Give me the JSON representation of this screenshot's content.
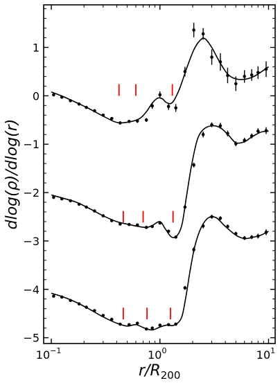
{
  "chart_data": {
    "type": "line",
    "xlabel": "r/R",
    "xlabel_sub": "200",
    "ylabel": "dlog(ρ)/dlog(r)",
    "xscale": "log",
    "xlim": [
      0.085,
      11.5
    ],
    "ylim": [
      -5.12,
      1.88
    ],
    "xticks": [
      {
        "value": 0.1,
        "base": "10",
        "exp": "−1"
      },
      {
        "value": 1,
        "label": "10",
        "exp": "0"
      },
      {
        "value": 10,
        "label": "10",
        "exp": "1"
      }
    ],
    "yticks": [
      1,
      0,
      -1,
      -2,
      -3,
      -4,
      -5
    ],
    "ytick_labels": [
      "1",
      "0",
      "−1",
      "−2",
      "−3",
      "−4",
      "−5"
    ],
    "series": [
      {
        "curve_x": [
          0.1,
          0.13,
          0.17,
          0.22,
          0.3,
          0.4,
          0.52,
          0.65,
          0.75,
          0.85,
          0.95,
          1.05,
          1.15,
          1.3,
          1.5,
          1.75,
          2.05,
          2.35,
          2.6,
          3.0,
          3.5,
          4.2,
          5.0,
          6.0,
          7.0,
          8.0,
          10.0
        ],
        "curve_y": [
          0.08,
          -0.02,
          -0.14,
          -0.26,
          -0.42,
          -0.55,
          -0.54,
          -0.47,
          -0.33,
          -0.15,
          -0.05,
          -0.06,
          -0.14,
          -0.14,
          0.12,
          0.55,
          0.95,
          1.15,
          1.18,
          1.0,
          0.72,
          0.45,
          0.35,
          0.34,
          0.38,
          0.45,
          0.6
        ],
        "points": [
          {
            "x": 0.105,
            "y": 0.02,
            "err": 0.02
          },
          {
            "x": 0.125,
            "y": -0.03,
            "err": 0.02
          },
          {
            "x": 0.15,
            "y": -0.1,
            "err": 0.02
          },
          {
            "x": 0.18,
            "y": -0.17,
            "err": 0.02
          },
          {
            "x": 0.21,
            "y": -0.24,
            "err": 0.02
          },
          {
            "x": 0.25,
            "y": -0.31,
            "err": 0.02
          },
          {
            "x": 0.3,
            "y": -0.4,
            "err": 0.02
          },
          {
            "x": 0.36,
            "y": -0.47,
            "err": 0.02
          },
          {
            "x": 0.43,
            "y": -0.56,
            "err": 0.03
          },
          {
            "x": 0.52,
            "y": -0.53,
            "err": 0.03
          },
          {
            "x": 0.62,
            "y": -0.52,
            "err": 0.04
          },
          {
            "x": 0.75,
            "y": -0.5,
            "err": 0.04
          },
          {
            "x": 0.85,
            "y": -0.21,
            "err": 0.06
          },
          {
            "x": 1.0,
            "y": 0.02,
            "err": 0.07
          },
          {
            "x": 1.2,
            "y": -0.22,
            "err": 0.07
          },
          {
            "x": 1.4,
            "y": -0.25,
            "err": 0.08
          },
          {
            "x": 1.7,
            "y": 0.5,
            "err": 0.1
          },
          {
            "x": 2.05,
            "y": 1.36,
            "err": 0.15
          },
          {
            "x": 2.5,
            "y": 1.28,
            "err": 0.12
          },
          {
            "x": 3.0,
            "y": 0.8,
            "err": 0.16
          },
          {
            "x": 3.6,
            "y": 0.7,
            "err": 0.18
          },
          {
            "x": 4.2,
            "y": 0.42,
            "err": 0.16
          },
          {
            "x": 5.0,
            "y": 0.25,
            "err": 0.15
          },
          {
            "x": 6.0,
            "y": 0.4,
            "err": 0.13
          },
          {
            "x": 7.0,
            "y": 0.43,
            "err": 0.12
          },
          {
            "x": 8.0,
            "y": 0.48,
            "err": 0.13
          },
          {
            "x": 9.5,
            "y": 0.55,
            "err": 0.16
          }
        ],
        "markers_x": [
          0.42,
          0.6,
          1.3
        ]
      },
      {
        "curve_x": [
          0.1,
          0.13,
          0.17,
          0.22,
          0.3,
          0.4,
          0.52,
          0.63,
          0.75,
          0.85,
          1.0,
          1.12,
          1.28,
          1.45,
          1.6,
          1.75,
          1.95,
          2.2,
          2.5,
          3.0,
          3.6,
          4.3,
          5.0,
          6.0,
          7.0,
          8.5,
          10.0
        ],
        "curve_y": [
          -2.05,
          -2.12,
          -2.2,
          -2.32,
          -2.48,
          -2.6,
          -2.66,
          -2.7,
          -2.72,
          -2.68,
          -2.6,
          -2.75,
          -2.92,
          -2.88,
          -2.65,
          -2.1,
          -1.45,
          -0.92,
          -0.7,
          -0.62,
          -0.66,
          -0.82,
          -0.97,
          -0.95,
          -0.85,
          -0.75,
          -0.73
        ],
        "points": [
          {
            "x": 0.105,
            "y": -2.1,
            "err": 0.02
          },
          {
            "x": 0.125,
            "y": -2.13,
            "err": 0.02
          },
          {
            "x": 0.15,
            "y": -2.17,
            "err": 0.02
          },
          {
            "x": 0.18,
            "y": -2.24,
            "err": 0.02
          },
          {
            "x": 0.21,
            "y": -2.3,
            "err": 0.02
          },
          {
            "x": 0.25,
            "y": -2.38,
            "err": 0.02
          },
          {
            "x": 0.3,
            "y": -2.48,
            "err": 0.02
          },
          {
            "x": 0.36,
            "y": -2.58,
            "err": 0.02
          },
          {
            "x": 0.43,
            "y": -2.65,
            "err": 0.02
          },
          {
            "x": 0.52,
            "y": -2.66,
            "err": 0.02
          },
          {
            "x": 0.62,
            "y": -2.67,
            "err": 0.02
          },
          {
            "x": 0.75,
            "y": -2.72,
            "err": 0.02
          },
          {
            "x": 0.85,
            "y": -2.7,
            "err": 0.03
          },
          {
            "x": 1.0,
            "y": -2.63,
            "err": 0.03
          },
          {
            "x": 1.2,
            "y": -2.8,
            "err": 0.03
          },
          {
            "x": 1.4,
            "y": -2.92,
            "err": 0.03
          },
          {
            "x": 1.7,
            "y": -2.3,
            "err": 0.04
          },
          {
            "x": 2.05,
            "y": -1.43,
            "err": 0.05
          },
          {
            "x": 2.5,
            "y": -0.8,
            "err": 0.06
          },
          {
            "x": 3.0,
            "y": -0.6,
            "err": 0.05
          },
          {
            "x": 3.6,
            "y": -0.62,
            "err": 0.06
          },
          {
            "x": 4.2,
            "y": -0.78,
            "err": 0.06
          },
          {
            "x": 5.0,
            "y": -0.99,
            "err": 0.05
          },
          {
            "x": 6.0,
            "y": -0.92,
            "err": 0.05
          },
          {
            "x": 7.0,
            "y": -0.83,
            "err": 0.05
          },
          {
            "x": 8.0,
            "y": -0.73,
            "err": 0.06
          },
          {
            "x": 9.5,
            "y": -0.72,
            "err": 0.07
          }
        ],
        "markers_x": [
          0.46,
          0.7,
          1.32
        ]
      },
      {
        "curve_x": [
          0.1,
          0.13,
          0.17,
          0.22,
          0.3,
          0.4,
          0.5,
          0.6,
          0.72,
          0.85,
          1.0,
          1.15,
          1.3,
          1.45,
          1.6,
          1.75,
          1.9,
          2.1,
          2.4,
          2.8,
          3.3,
          4.0,
          5.0,
          6.0,
          7.0,
          8.5,
          10.0
        ],
        "curve_y": [
          -4.08,
          -4.16,
          -4.27,
          -4.4,
          -4.57,
          -4.7,
          -4.76,
          -4.73,
          -4.8,
          -4.84,
          -4.78,
          -4.74,
          -4.75,
          -4.7,
          -4.55,
          -4.1,
          -3.6,
          -3.1,
          -2.72,
          -2.52,
          -2.52,
          -2.7,
          -2.88,
          -2.95,
          -2.93,
          -2.88,
          -2.8
        ],
        "points": [
          {
            "x": 0.105,
            "y": -4.14,
            "err": 0.02
          },
          {
            "x": 0.125,
            "y": -4.16,
            "err": 0.02
          },
          {
            "x": 0.15,
            "y": -4.23,
            "err": 0.02
          },
          {
            "x": 0.18,
            "y": -4.3,
            "err": 0.02
          },
          {
            "x": 0.21,
            "y": -4.37,
            "err": 0.02
          },
          {
            "x": 0.25,
            "y": -4.44,
            "err": 0.02
          },
          {
            "x": 0.3,
            "y": -4.54,
            "err": 0.02
          },
          {
            "x": 0.36,
            "y": -4.62,
            "err": 0.02
          },
          {
            "x": 0.43,
            "y": -4.72,
            "err": 0.02
          },
          {
            "x": 0.52,
            "y": -4.73,
            "err": 0.02
          },
          {
            "x": 0.62,
            "y": -4.7,
            "err": 0.02
          },
          {
            "x": 0.75,
            "y": -4.82,
            "err": 0.02
          },
          {
            "x": 0.85,
            "y": -4.8,
            "err": 0.02
          },
          {
            "x": 1.0,
            "y": -4.74,
            "err": 0.02
          },
          {
            "x": 1.2,
            "y": -4.73,
            "err": 0.02
          },
          {
            "x": 1.4,
            "y": -4.72,
            "err": 0.03
          },
          {
            "x": 1.7,
            "y": -3.97,
            "err": 0.04
          },
          {
            "x": 2.05,
            "y": -3.18,
            "err": 0.05
          },
          {
            "x": 2.5,
            "y": -2.69,
            "err": 0.05
          },
          {
            "x": 3.0,
            "y": -2.5,
            "err": 0.04
          },
          {
            "x": 3.6,
            "y": -2.53,
            "err": 0.04
          },
          {
            "x": 4.2,
            "y": -2.7,
            "err": 0.04
          },
          {
            "x": 5.0,
            "y": -2.85,
            "err": 0.04
          },
          {
            "x": 6.0,
            "y": -2.94,
            "err": 0.04
          },
          {
            "x": 7.0,
            "y": -2.92,
            "err": 0.04
          },
          {
            "x": 8.0,
            "y": -2.9,
            "err": 0.05
          },
          {
            "x": 9.5,
            "y": -2.82,
            "err": 0.06
          }
        ],
        "markers_x": [
          0.46,
          0.76,
          1.25
        ]
      }
    ],
    "grid": false,
    "colors": {
      "line": "#000000",
      "marker": "#ff0000"
    }
  }
}
